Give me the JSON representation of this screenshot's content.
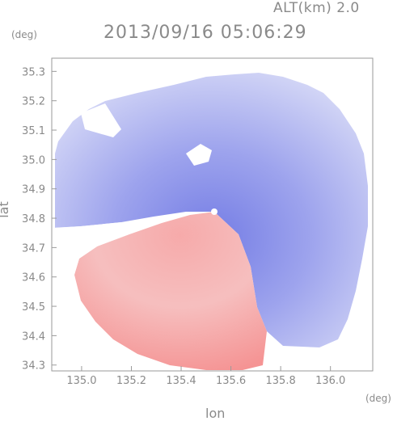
{
  "header": {
    "altitude_label": "ALT(km) 2.0",
    "timestamp": "2013/09/16 05:06:29"
  },
  "chart_data": {
    "type": "heatmap",
    "xlabel": "lon",
    "ylabel": "lat",
    "x_unit": "(deg)",
    "y_unit": "(deg)",
    "xlim": [
      134.88,
      136.17
    ],
    "ylim": [
      34.28,
      35.345
    ],
    "x_ticks": [
      "135.0",
      "135.2",
      "135.4",
      "135.6",
      "135.8",
      "136.0"
    ],
    "y_ticks": [
      "34.3",
      "34.4",
      "34.5",
      "34.6",
      "34.7",
      "34.8",
      "34.9",
      "35.0",
      "35.1",
      "35.2",
      "35.3"
    ],
    "x_tick_values": [
      135.0,
      135.2,
      135.4,
      135.6,
      135.8,
      136.0
    ],
    "y_tick_values": [
      34.3,
      34.4,
      34.5,
      34.6,
      34.7,
      34.8,
      34.9,
      35.0,
      35.1,
      35.2,
      35.3
    ],
    "radar_center": {
      "lon": 135.5,
      "lat": 34.82
    },
    "colors": {
      "approaching": "#7f86e6",
      "receding": "#f28a8a",
      "axis": "#9a9a9a"
    }
  }
}
